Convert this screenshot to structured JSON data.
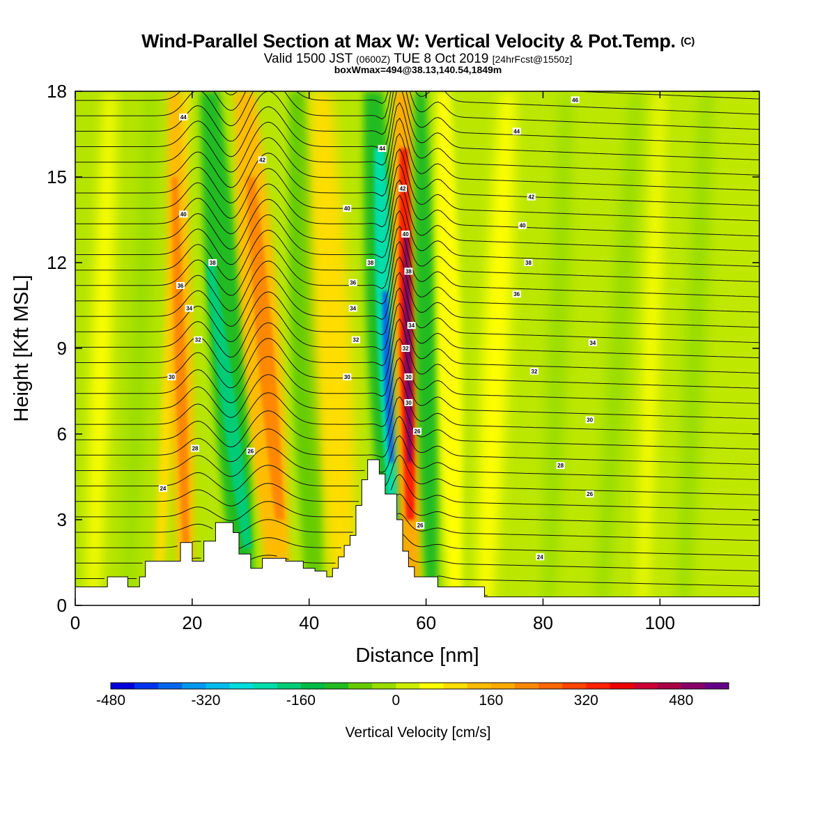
{
  "chart_data": {
    "type": "heatmap",
    "title": "Wind-Parallel Section at Max W: Vertical Velocity & Pot.Temp.",
    "title_mark": "(C)",
    "subtitle_main": "Valid 1500 JST",
    "subtitle_utc": "(0600Z)",
    "subtitle_date": "TUE 8 Oct 2019",
    "subtitle_fcst": "[24hrFcst@1550z]",
    "subtitle2": "boxWmax=494@38.13,140.54,1849m",
    "xlabel": "Distance [nm]",
    "ylabel": "Height [Kft MSL]",
    "xlim": [
      0,
      117
    ],
    "ylim": [
      0,
      18
    ],
    "xticks": [
      "0",
      "20",
      "40",
      "60",
      "80",
      "100"
    ],
    "xtick_values": [
      0,
      20,
      40,
      60,
      80,
      100
    ],
    "yticks": [
      "0",
      "3",
      "6",
      "9",
      "12",
      "15",
      "18"
    ],
    "ytick_values": [
      0,
      3,
      6,
      9,
      12,
      15,
      18
    ],
    "colorbar": {
      "title": "Vertical Velocity [cm/s]",
      "min": -480,
      "max": 560,
      "step": 40,
      "tick_labels": [
        "-480",
        "-320",
        "-160",
        "0",
        "160",
        "320",
        "480"
      ],
      "tick_values": [
        -480,
        -320,
        -160,
        0,
        160,
        320,
        480
      ],
      "colors": [
        "#0000dd",
        "#0033ee",
        "#0066ee",
        "#0099ee",
        "#00bbee",
        "#00dddd",
        "#00ddaa",
        "#00cc77",
        "#00bb44",
        "#22bb22",
        "#66cc00",
        "#99dd00",
        "#ccee00",
        "#ffff00",
        "#ffdd00",
        "#ffbb00",
        "#ffaa00",
        "#ff8800",
        "#ff6600",
        "#ff4400",
        "#ff2200",
        "#ee0000",
        "#cc0033",
        "#aa0044",
        "#880066",
        "#660088"
      ]
    },
    "terrain_kft": [
      [
        0,
        0.65
      ],
      [
        5.5,
        0.65
      ],
      [
        5.5,
        1.0
      ],
      [
        9,
        1.0
      ],
      [
        9,
        0.65
      ],
      [
        11,
        0.65
      ],
      [
        11,
        1.0
      ],
      [
        12,
        1.0
      ],
      [
        12,
        1.55
      ],
      [
        18,
        1.55
      ],
      [
        18,
        2.2
      ],
      [
        20,
        2.2
      ],
      [
        20,
        1.55
      ],
      [
        22,
        1.55
      ],
      [
        22,
        2.25
      ],
      [
        24,
        2.25
      ],
      [
        24,
        2.9
      ],
      [
        27,
        2.9
      ],
      [
        27,
        2.55
      ],
      [
        28,
        2.55
      ],
      [
        28,
        1.8
      ],
      [
        30,
        1.8
      ],
      [
        30,
        1.3
      ],
      [
        32,
        1.3
      ],
      [
        32,
        1.65
      ],
      [
        34,
        1.65
      ],
      [
        34,
        1.65
      ],
      [
        36,
        1.65
      ],
      [
        36,
        1.55
      ],
      [
        39,
        1.55
      ],
      [
        39,
        1.3
      ],
      [
        41,
        1.3
      ],
      [
        41,
        1.2
      ],
      [
        43,
        1.2
      ],
      [
        43,
        1.0
      ],
      [
        44,
        1.0
      ],
      [
        44,
        1.3
      ],
      [
        45,
        1.3
      ],
      [
        45,
        1.7
      ],
      [
        46,
        1.7
      ],
      [
        46,
        2.1
      ],
      [
        47,
        2.1
      ],
      [
        47,
        2.45
      ],
      [
        48,
        2.45
      ],
      [
        48,
        3.5
      ],
      [
        49,
        3.5
      ],
      [
        49,
        4.4
      ],
      [
        50,
        4.4
      ],
      [
        50,
        5.1
      ],
      [
        52,
        5.1
      ],
      [
        52,
        4.6
      ],
      [
        53,
        4.6
      ],
      [
        53,
        3.9
      ],
      [
        55,
        3.9
      ],
      [
        55,
        3.0
      ],
      [
        56,
        3.0
      ],
      [
        56,
        1.9
      ],
      [
        57,
        1.9
      ],
      [
        57,
        1.35
      ],
      [
        58,
        1.35
      ],
      [
        58,
        1.0
      ],
      [
        62,
        1.0
      ],
      [
        62,
        0.65
      ],
      [
        70,
        0.65
      ],
      [
        70,
        0.3
      ],
      [
        117,
        0.3
      ]
    ],
    "theta_labels": [
      {
        "x": 18.5,
        "y": 17.1,
        "text": "44"
      },
      {
        "x": 32.0,
        "y": 15.6,
        "text": "42"
      },
      {
        "x": 18.5,
        "y": 13.7,
        "text": "40"
      },
      {
        "x": 23.5,
        "y": 12.0,
        "text": "38"
      },
      {
        "x": 18.0,
        "y": 11.2,
        "text": "36"
      },
      {
        "x": 19.5,
        "y": 10.4,
        "text": "34"
      },
      {
        "x": 21.0,
        "y": 9.3,
        "text": "32"
      },
      {
        "x": 16.5,
        "y": 8.0,
        "text": "30"
      },
      {
        "x": 20.5,
        "y": 5.5,
        "text": "28"
      },
      {
        "x": 30.0,
        "y": 5.4,
        "text": "26"
      },
      {
        "x": 15.0,
        "y": 4.1,
        "text": "24"
      },
      {
        "x": 52.5,
        "y": 16.0,
        "text": "44"
      },
      {
        "x": 46.5,
        "y": 13.9,
        "text": "40"
      },
      {
        "x": 50.5,
        "y": 12.0,
        "text": "38"
      },
      {
        "x": 47.5,
        "y": 11.3,
        "text": "36"
      },
      {
        "x": 47.5,
        "y": 10.4,
        "text": "34"
      },
      {
        "x": 48.0,
        "y": 9.3,
        "text": "32"
      },
      {
        "x": 46.5,
        "y": 8.0,
        "text": "30"
      },
      {
        "x": 56.0,
        "y": 14.6,
        "text": "42"
      },
      {
        "x": 56.5,
        "y": 13.0,
        "text": "40"
      },
      {
        "x": 57.0,
        "y": 11.7,
        "text": "38"
      },
      {
        "x": 57.5,
        "y": 9.8,
        "text": "34"
      },
      {
        "x": 56.5,
        "y": 9.0,
        "text": "32"
      },
      {
        "x": 57.0,
        "y": 8.0,
        "text": "30"
      },
      {
        "x": 57.0,
        "y": 7.1,
        "text": "30"
      },
      {
        "x": 58.5,
        "y": 6.1,
        "text": "26"
      },
      {
        "x": 59.0,
        "y": 2.8,
        "text": "26"
      },
      {
        "x": 85.5,
        "y": 17.7,
        "text": "46"
      },
      {
        "x": 75.5,
        "y": 16.6,
        "text": "44"
      },
      {
        "x": 78.0,
        "y": 14.3,
        "text": "42"
      },
      {
        "x": 76.5,
        "y": 13.3,
        "text": "40"
      },
      {
        "x": 77.5,
        "y": 12.0,
        "text": "38"
      },
      {
        "x": 75.5,
        "y": 10.9,
        "text": "36"
      },
      {
        "x": 88.5,
        "y": 9.2,
        "text": "34"
      },
      {
        "x": 78.5,
        "y": 8.2,
        "text": "32"
      },
      {
        "x": 88.0,
        "y": 6.5,
        "text": "30"
      },
      {
        "x": 83.0,
        "y": 4.9,
        "text": "28"
      },
      {
        "x": 88.0,
        "y": 3.9,
        "text": "26"
      },
      {
        "x": 79.5,
        "y": 1.7,
        "text": "24"
      }
    ]
  }
}
